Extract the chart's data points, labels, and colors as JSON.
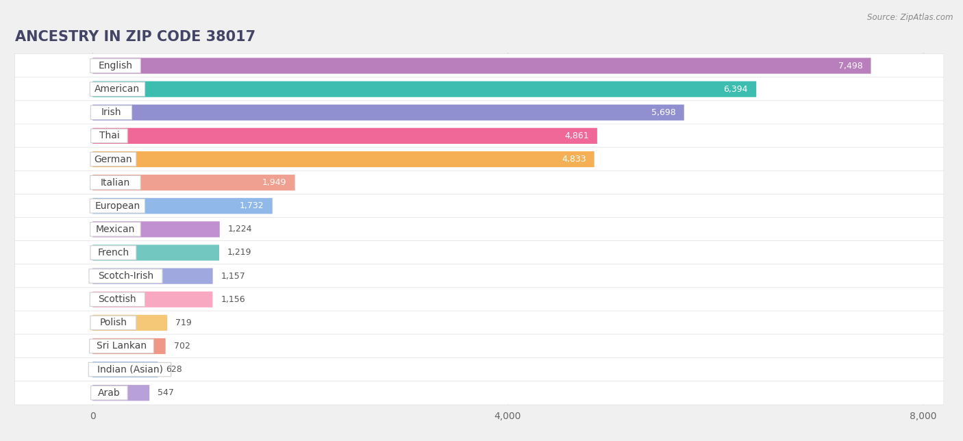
{
  "title": "ANCESTRY IN ZIP CODE 38017",
  "source": "Source: ZipAtlas.com",
  "categories": [
    "English",
    "American",
    "Irish",
    "Thai",
    "German",
    "Italian",
    "European",
    "Mexican",
    "French",
    "Scotch-Irish",
    "Scottish",
    "Polish",
    "Sri Lankan",
    "Indian (Asian)",
    "Arab"
  ],
  "values": [
    7498,
    6394,
    5698,
    4861,
    4833,
    1949,
    1732,
    1224,
    1219,
    1157,
    1156,
    719,
    702,
    628,
    547
  ],
  "colors": [
    "#b87fbc",
    "#3dbdb0",
    "#9090d0",
    "#f06898",
    "#f5b055",
    "#f0a090",
    "#90b8e8",
    "#c090d0",
    "#72c8c0",
    "#a0a8e0",
    "#f8a8c0",
    "#f5c878",
    "#f09888",
    "#90b8e8",
    "#b8a0d8"
  ],
  "xlim_max": 8000,
  "xticks": [
    0,
    4000,
    8000
  ],
  "background_color": "#f0f0f0",
  "row_bg_color": "#ffffff",
  "title_fontsize": 15,
  "label_fontsize": 10,
  "value_fontsize": 9,
  "value_threshold": 1500
}
